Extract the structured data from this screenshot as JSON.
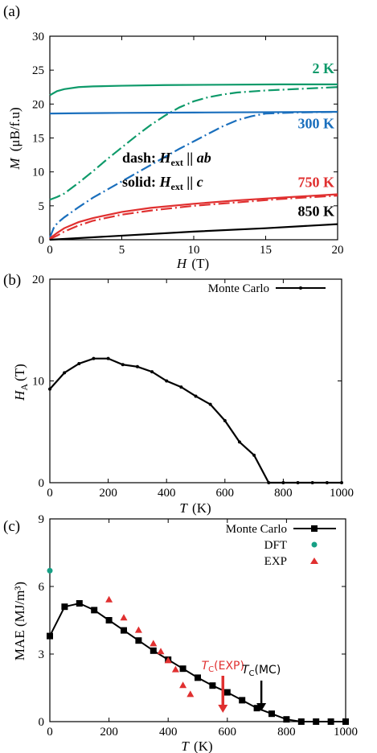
{
  "chart_data": [
    {
      "panel": "(a)",
      "type": "line",
      "xlabel": "H",
      "xlabel_unit": "(T)",
      "ylabel": "M",
      "ylabel_unit": "(μB/f.u)",
      "xlim": [
        0,
        20
      ],
      "ylim": [
        0,
        30
      ],
      "xticks": [
        "0",
        "5",
        "10",
        "15",
        "20"
      ],
      "yticks": [
        "0",
        "5",
        "10",
        "15",
        "20",
        "25",
        "30"
      ],
      "annotation_line1": "dash: H_ext || ab",
      "annotation_line2": "solid: H_ext || c",
      "ann1_prefix": "dash: ",
      "ann1_sym": "H",
      "ann1_sub": "ext",
      "ann1_suffix": " || ab",
      "ann2_prefix": "solid: ",
      "ann2_sym": "H",
      "ann2_sub": "ext",
      "ann2_suffix": " || c",
      "series": [
        {
          "name": "2 K",
          "color": "#0e9a6a",
          "style": "solid",
          "x": [
            0,
            0.5,
            1,
            2,
            3,
            5,
            8,
            12,
            16,
            20
          ],
          "y": [
            21.3,
            21.9,
            22.2,
            22.5,
            22.6,
            22.7,
            22.8,
            22.85,
            22.9,
            22.9
          ]
        },
        {
          "name": "2 K",
          "color": "#0e9a6a",
          "style": "dash",
          "x": [
            0,
            0.5,
            1,
            2,
            3,
            4,
            5,
            6,
            7,
            8,
            9,
            10,
            11,
            12,
            13,
            15,
            17,
            20
          ],
          "y": [
            5.9,
            6.3,
            6.8,
            8.4,
            10.1,
            11.9,
            13.6,
            15.3,
            16.9,
            18.3,
            19.5,
            20.4,
            21.0,
            21.4,
            21.7,
            22.0,
            22.2,
            22.5
          ]
        },
        {
          "name": "300 K",
          "color": "#1a6fbd",
          "style": "solid",
          "x": [
            0,
            2,
            5,
            10,
            15,
            20
          ],
          "y": [
            18.6,
            18.65,
            18.7,
            18.75,
            18.8,
            18.85
          ]
        },
        {
          "name": "300 K",
          "color": "#1a6fbd",
          "style": "dash",
          "x": [
            0,
            0.3,
            0.6,
            1,
            2,
            3,
            4,
            5,
            6,
            7,
            8,
            9,
            10,
            11,
            12,
            13,
            14,
            15,
            17,
            20
          ],
          "y": [
            0.3,
            1.9,
            2.6,
            3.3,
            4.8,
            6.2,
            7.4,
            8.6,
            9.8,
            11.0,
            12.2,
            13.4,
            14.5,
            15.6,
            16.7,
            17.6,
            18.2,
            18.6,
            18.75,
            18.85
          ]
        },
        {
          "name": "750 K",
          "color": "#e03030",
          "style": "solid",
          "x": [
            0,
            0.5,
            1,
            2,
            3,
            5,
            7,
            10,
            13,
            16,
            20
          ],
          "y": [
            0.2,
            1.0,
            1.7,
            2.6,
            3.2,
            4.1,
            4.7,
            5.3,
            5.8,
            6.2,
            6.7
          ]
        },
        {
          "name": "750 K",
          "color": "#e03030",
          "style": "dash",
          "x": [
            0,
            0.5,
            1,
            2,
            3,
            5,
            7,
            10,
            13,
            16,
            20
          ],
          "y": [
            0.1,
            0.6,
            1.2,
            2.1,
            2.8,
            3.7,
            4.3,
            5.0,
            5.5,
            6.0,
            6.5
          ]
        },
        {
          "name": "850 K",
          "color": "#000000",
          "style": "solid",
          "x": [
            0,
            5,
            10,
            15,
            20
          ],
          "y": [
            0.0,
            0.6,
            1.2,
            1.7,
            2.3
          ]
        }
      ],
      "labels": [
        {
          "text": "2 K",
          "color": "#0e9a6a",
          "x": 20,
          "y": 22.9
        },
        {
          "text": "300 K",
          "color": "#1a6fbd",
          "x": 20,
          "y": 18.8
        },
        {
          "text": "750 K",
          "color": "#e03030",
          "x": 20,
          "y": 6.6
        },
        {
          "text": "850 K",
          "color": "#000000",
          "x": 20,
          "y": 2.3
        }
      ]
    },
    {
      "panel": "(b)",
      "type": "line",
      "xlabel": "T",
      "xlabel_unit": "(K)",
      "ylabel": "H",
      "ylabel_sub": "A",
      "ylabel_unit": "(T)",
      "xlim": [
        0,
        1000
      ],
      "ylim": [
        0,
        20
      ],
      "xticks": [
        "0",
        "200",
        "400",
        "600",
        "800",
        "1000"
      ],
      "yticks": [
        "0",
        "10",
        "20"
      ],
      "legend": "Monte Carlo",
      "legend_placement": "top-right",
      "series": [
        {
          "name": "Monte Carlo",
          "color": "#000000",
          "x": [
            0,
            50,
            100,
            150,
            200,
            250,
            300,
            350,
            400,
            450,
            500,
            550,
            600,
            650,
            700,
            750,
            800,
            850,
            900,
            950,
            1000
          ],
          "y": [
            9.2,
            10.8,
            11.7,
            12.2,
            12.2,
            11.6,
            11.4,
            10.9,
            10.0,
            9.4,
            8.5,
            7.7,
            6.1,
            4.0,
            2.7,
            0.0,
            0.0,
            0.0,
            0.0,
            0.0,
            0.0
          ]
        }
      ]
    },
    {
      "panel": "(c)",
      "type": "line",
      "xlabel": "T",
      "xlabel_unit": "(K)",
      "ylabel": "MAE (MJ/m³)",
      "xlim": [
        0,
        1000
      ],
      "ylim": [
        0,
        9
      ],
      "xticks": [
        "0",
        "200",
        "400",
        "600",
        "800",
        "1000"
      ],
      "yticks": [
        "0",
        "3",
        "6",
        "9"
      ],
      "legend_placement": "top-right",
      "series": [
        {
          "name": "Monte Carlo",
          "color": "#000000",
          "marker": "square",
          "x": [
            0,
            50,
            100,
            150,
            200,
            250,
            300,
            350,
            400,
            450,
            500,
            550,
            600,
            650,
            700,
            750,
            800,
            850,
            900,
            950,
            1000
          ],
          "y": [
            3.8,
            5.1,
            5.25,
            4.95,
            4.5,
            4.05,
            3.6,
            3.15,
            2.75,
            2.35,
            1.95,
            1.6,
            1.3,
            0.95,
            0.6,
            0.35,
            0.1,
            0.0,
            0.0,
            0.0,
            0.0
          ]
        },
        {
          "name": "DFT",
          "color": "#16a085",
          "marker": "circle",
          "x": [
            0
          ],
          "y": [
            6.7
          ]
        },
        {
          "name": "EXP",
          "color": "#e03030",
          "marker": "triangle",
          "x": [
            200,
            250,
            300,
            350,
            375,
            400,
            425,
            450,
            475
          ],
          "y": [
            5.4,
            4.6,
            4.05,
            3.45,
            3.1,
            2.7,
            2.3,
            1.6,
            1.2
          ]
        }
      ],
      "annotations": [
        {
          "text_main": "T",
          "text_sub": "C",
          "text_tail": "(EXP)",
          "color": "#e03030",
          "x": 585
        },
        {
          "text_main": "T",
          "text_sub": "C",
          "text_tail": "(MC)",
          "color": "#000000",
          "x": 715
        }
      ]
    }
  ]
}
